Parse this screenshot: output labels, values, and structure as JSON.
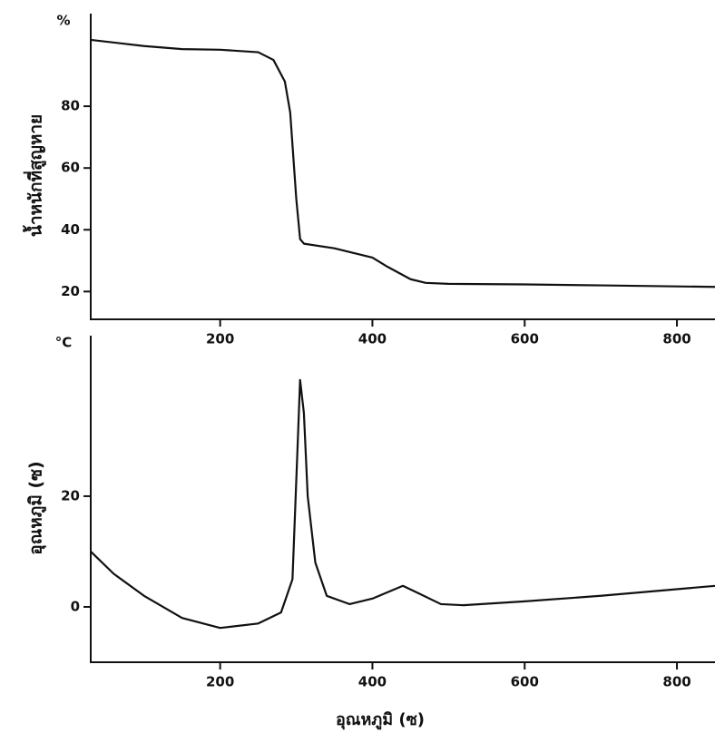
{
  "chart_data": [
    {
      "type": "line",
      "unit_label": "%",
      "y_label": "น้ำหนักที่สูญหาย",
      "x": [
        30,
        100,
        150,
        200,
        250,
        270,
        285,
        292,
        300,
        305,
        310,
        350,
        400,
        420,
        450,
        470,
        500,
        600,
        700,
        850
      ],
      "series": [
        {
          "color": "#111111",
          "values": [
            101.5,
            99.5,
            98.5,
            98.3,
            97.5,
            95,
            88,
            78,
            50,
            37,
            35.5,
            34,
            31,
            28,
            24,
            22.8,
            22.5,
            22.3,
            22,
            21.5
          ]
        }
      ],
      "xlim": [
        30,
        850
      ],
      "xticks": [
        200,
        400,
        600,
        800
      ],
      "ylim": [
        11,
        110
      ],
      "yticks": [
        20,
        40,
        60,
        80
      ]
    },
    {
      "type": "line",
      "unit_label": "°C",
      "y_label": "อุณหภูมิ (ซ)",
      "x_label": "อุณหภูมิ (ซ)",
      "x": [
        30,
        60,
        100,
        150,
        200,
        250,
        280,
        295,
        302,
        305,
        310,
        315,
        325,
        340,
        370,
        400,
        440,
        460,
        490,
        520,
        600,
        700,
        850
      ],
      "series": [
        {
          "color": "#111111",
          "values": [
            10,
            6,
            2,
            -2,
            -3.8,
            -3,
            -1,
            5,
            30,
            41,
            35,
            20,
            8,
            2,
            0.5,
            1.5,
            3.8,
            2.5,
            0.5,
            0.3,
            1,
            2,
            3.8
          ]
        }
      ],
      "xlim": [
        30,
        850
      ],
      "xticks": [
        200,
        400,
        600,
        800
      ],
      "ylim": [
        -10,
        49
      ],
      "yticks": [
        0,
        20
      ]
    }
  ]
}
